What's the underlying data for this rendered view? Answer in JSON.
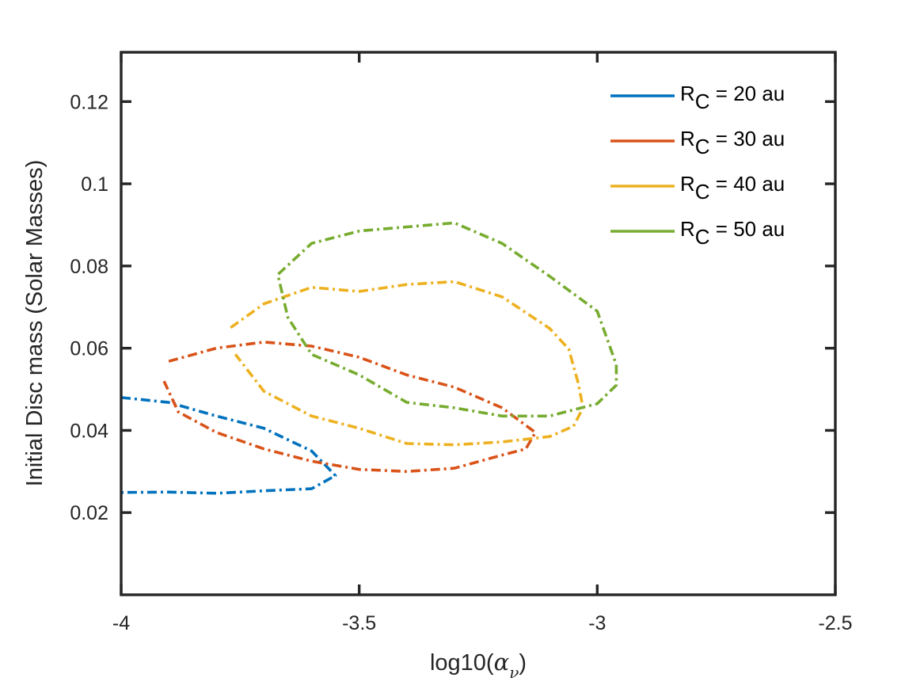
{
  "chart_data": {
    "type": "line",
    "xlabel_prefix": "log10(",
    "xlabel_symbol": "α",
    "xlabel_subscript": "ν",
    "xlabel_suffix": ")",
    "ylabel": "Initial Disc mass (Solar Masses)",
    "xlim": [
      -4,
      -2.5
    ],
    "ylim": [
      0,
      0.132
    ],
    "xticks": [
      -4,
      -3.5,
      -3,
      -2.5
    ],
    "xtick_labels": [
      "-4",
      "-3.5",
      "-3",
      "-2.5"
    ],
    "yticks": [
      0.02,
      0.04,
      0.06,
      0.08,
      0.1,
      0.12
    ],
    "ytick_labels": [
      "0.02",
      "0.04",
      "0.06",
      "0.08",
      "0.1",
      "0.12"
    ],
    "grid": false,
    "legend_position": "top-right",
    "line_style": "dash-dot",
    "series": [
      {
        "name": "R",
        "name_sub": "C",
        "name_suffix": " = 20 au",
        "color": "#0072BD",
        "points": [
          [
            -4.0,
            0.048
          ],
          [
            -3.9,
            0.0468
          ],
          [
            -3.8,
            0.0435
          ],
          [
            -3.7,
            0.0405
          ],
          [
            -3.6,
            0.035
          ],
          [
            -3.55,
            0.029
          ],
          [
            -3.6,
            0.0258
          ],
          [
            -3.7,
            0.0253
          ],
          [
            -3.8,
            0.0247
          ],
          [
            -3.9,
            0.025
          ],
          [
            -4.0,
            0.0249
          ]
        ]
      },
      {
        "name": "R",
        "name_sub": "C",
        "name_suffix": " = 30 au",
        "color": "#D95319",
        "points": [
          [
            -3.9,
            0.0568
          ],
          [
            -3.8,
            0.06
          ],
          [
            -3.7,
            0.0615
          ],
          [
            -3.6,
            0.0605
          ],
          [
            -3.5,
            0.0578
          ],
          [
            -3.4,
            0.0535
          ],
          [
            -3.3,
            0.0505
          ],
          [
            -3.2,
            0.0455
          ],
          [
            -3.13,
            0.0395
          ],
          [
            -3.15,
            0.0355
          ],
          [
            -3.2,
            0.034
          ],
          [
            -3.3,
            0.0308
          ],
          [
            -3.4,
            0.03
          ],
          [
            -3.5,
            0.0305
          ],
          [
            -3.6,
            0.0325
          ],
          [
            -3.7,
            0.0355
          ],
          [
            -3.8,
            0.0395
          ],
          [
            -3.88,
            0.0445
          ],
          [
            -3.91,
            0.052
          ]
        ]
      },
      {
        "name": "R",
        "name_sub": "C",
        "name_suffix": " = 40 au",
        "color": "#EDB120",
        "points": [
          [
            -3.77,
            0.065
          ],
          [
            -3.7,
            0.0708
          ],
          [
            -3.6,
            0.0748
          ],
          [
            -3.5,
            0.0738
          ],
          [
            -3.4,
            0.0755
          ],
          [
            -3.3,
            0.0762
          ],
          [
            -3.2,
            0.0725
          ],
          [
            -3.1,
            0.0648
          ],
          [
            -3.06,
            0.0598
          ],
          [
            -3.04,
            0.0515
          ],
          [
            -3.03,
            0.0455
          ],
          [
            -3.05,
            0.041
          ],
          [
            -3.1,
            0.0385
          ],
          [
            -3.2,
            0.0372
          ],
          [
            -3.3,
            0.0365
          ],
          [
            -3.4,
            0.0368
          ],
          [
            -3.5,
            0.0405
          ],
          [
            -3.6,
            0.0435
          ],
          [
            -3.7,
            0.0495
          ],
          [
            -3.76,
            0.0585
          ]
        ]
      },
      {
        "name": "R",
        "name_sub": "C",
        "name_suffix": " = 50 au",
        "color": "#77AC30",
        "points": [
          [
            -3.67,
            0.078
          ],
          [
            -3.6,
            0.0855
          ],
          [
            -3.5,
            0.0885
          ],
          [
            -3.4,
            0.0895
          ],
          [
            -3.3,
            0.0905
          ],
          [
            -3.2,
            0.0855
          ],
          [
            -3.1,
            0.0775
          ],
          [
            -3.0,
            0.069
          ],
          [
            -2.96,
            0.056
          ],
          [
            -2.96,
            0.051
          ],
          [
            -3.0,
            0.0465
          ],
          [
            -3.1,
            0.0435
          ],
          [
            -3.2,
            0.0435
          ],
          [
            -3.3,
            0.0455
          ],
          [
            -3.4,
            0.0468
          ],
          [
            -3.5,
            0.0535
          ],
          [
            -3.6,
            0.0585
          ],
          [
            -3.65,
            0.0675
          ],
          [
            -3.67,
            0.0775
          ]
        ]
      }
    ]
  }
}
